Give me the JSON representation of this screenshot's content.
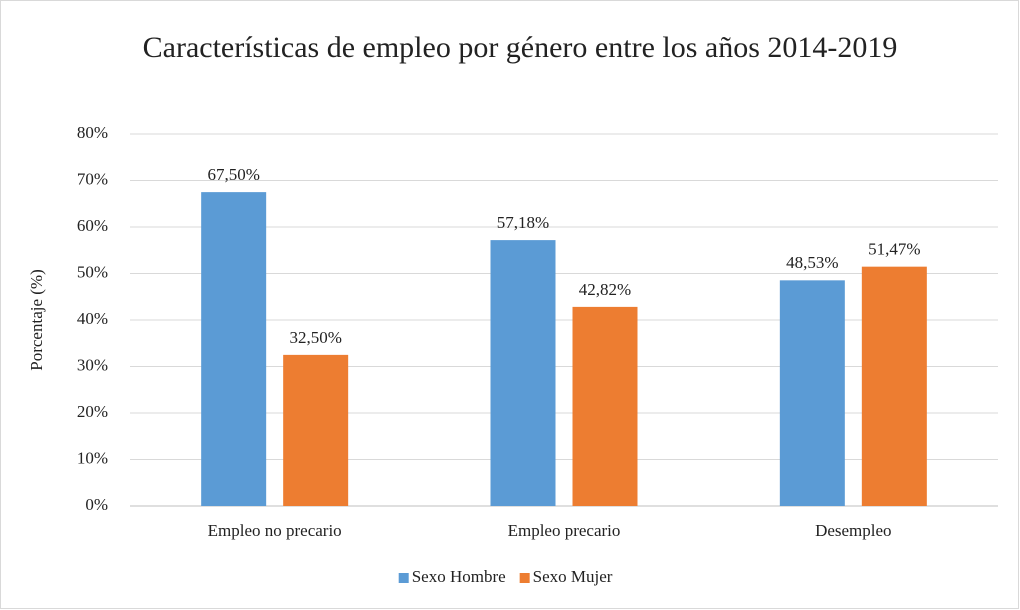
{
  "chart_data": {
    "type": "bar",
    "title": "Características de empleo por género entre los años 2014-2019",
    "y_label": "Porcentaje (%)",
    "categories": [
      "Empleo no precario",
      "Empleo precario",
      "Desempleo"
    ],
    "series": [
      {
        "name": "Sexo Hombre",
        "color": "#5b9bd5",
        "values": [
          67.5,
          57.18,
          48.53
        ],
        "value_labels": [
          "67,50%",
          "57,18%",
          "48,53%"
        ]
      },
      {
        "name": "Sexo Mujer",
        "color": "#ed7d31",
        "values": [
          32.5,
          42.82,
          51.47
        ],
        "value_labels": [
          "32,50%",
          "42,82%",
          "51,47%"
        ]
      }
    ],
    "ylim": [
      0,
      80
    ],
    "yticks": [
      {
        "value": 0,
        "label": "0%"
      },
      {
        "value": 10,
        "label": "10%"
      },
      {
        "value": 20,
        "label": "20%"
      },
      {
        "value": 30,
        "label": "30%"
      },
      {
        "value": 40,
        "label": "40%"
      },
      {
        "value": 50,
        "label": "50%"
      },
      {
        "value": 60,
        "label": "60%"
      },
      {
        "value": 70,
        "label": "70%"
      },
      {
        "value": 80,
        "label": "80%"
      }
    ],
    "grid": true,
    "legend": "bottom"
  }
}
